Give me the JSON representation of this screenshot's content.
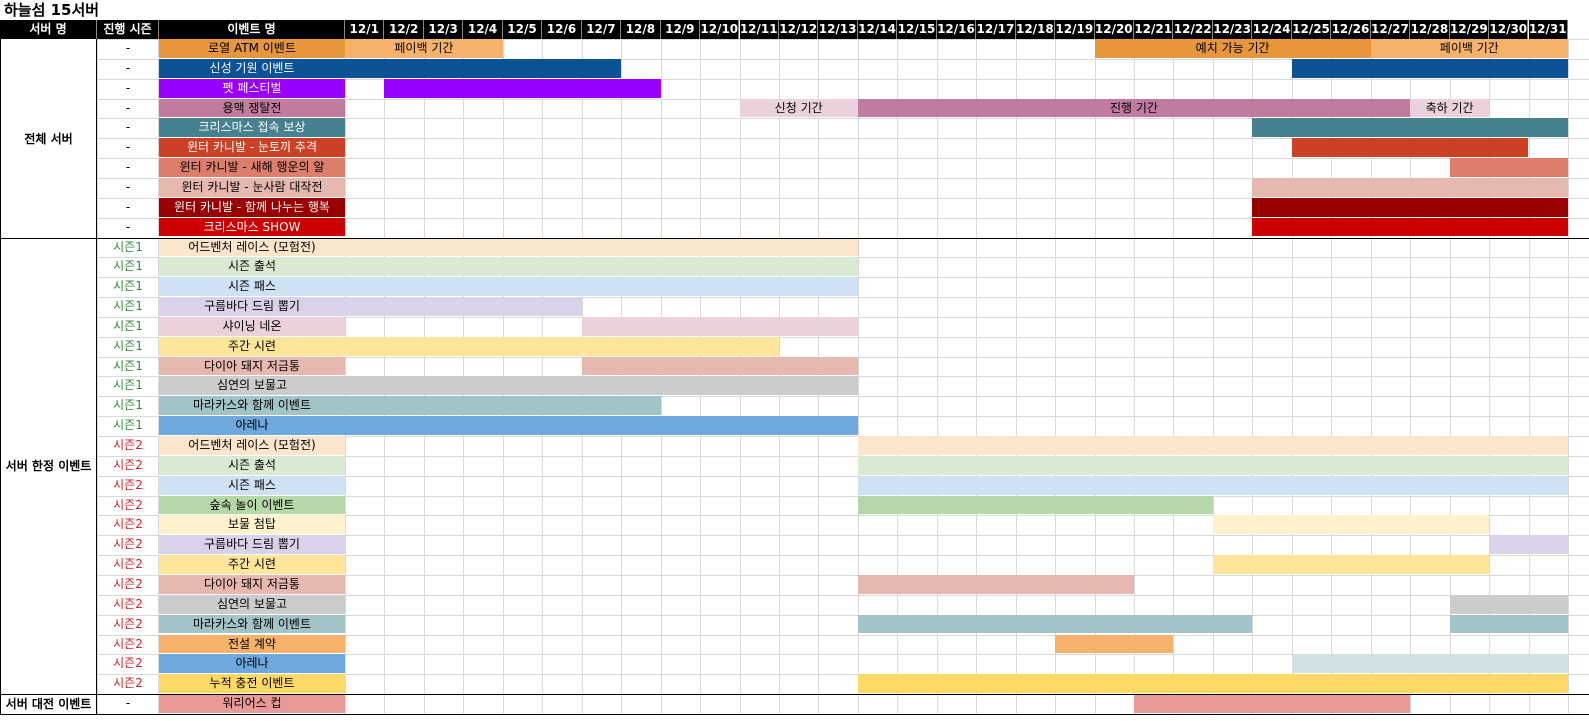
{
  "title": "하늘섬 15서버",
  "headers": {
    "server": "서버 명",
    "season": "진행 시즌",
    "event": "이벤트 명"
  },
  "dates": [
    "12/1",
    "12/2",
    "12/3",
    "12/4",
    "12/5",
    "12/6",
    "12/7",
    "12/8",
    "12/9",
    "12/10",
    "12/11",
    "12/12",
    "12/13",
    "12/14",
    "12/15",
    "12/16",
    "12/17",
    "12/18",
    "12/19",
    "12/20",
    "12/21",
    "12/22",
    "12/23",
    "12/24",
    "12/25",
    "12/26",
    "12/27",
    "12/28",
    "12/29",
    "12/30",
    "12/31"
  ],
  "groups": [
    {
      "label": "전체 서버",
      "start": 0,
      "count": 10
    },
    {
      "label": "서버 한정 이벤트",
      "start": 10,
      "count": 23
    },
    {
      "label": "서버 대전 이벤트",
      "start": 33,
      "count": 1
    }
  ],
  "season_colors": {
    "-": "#000000",
    "시즌1": "#2e8b3a",
    "시즌2": "#d42020"
  },
  "rows": [
    {
      "season": "-",
      "name": "로열 ATM 이벤트",
      "color": "#e8963c",
      "text": "#000000",
      "bars": [
        {
          "start": 1,
          "end": 4,
          "color": "#f6b26b",
          "label": "페이백 기간"
        },
        {
          "start": 20,
          "end": 26,
          "color": "#e8963c",
          "label": "예치 가능 기간"
        },
        {
          "start": 27,
          "end": 31,
          "color": "#f6b26b",
          "label": "페이백 기간"
        }
      ]
    },
    {
      "season": "-",
      "name": "신성 기원 이벤트",
      "color": "#0b5394",
      "text": "#ffffff",
      "bars": [
        {
          "start": 1,
          "end": 7,
          "color": "#0b5394",
          "label": ""
        },
        {
          "start": 25,
          "end": 31,
          "color": "#0b5394",
          "label": ""
        }
      ]
    },
    {
      "season": "-",
      "name": "펫 페스티벌",
      "color": "#9900ff",
      "text": "#ffffff",
      "bars": [
        {
          "start": 2,
          "end": 8,
          "color": "#9900ff",
          "label": ""
        }
      ]
    },
    {
      "season": "-",
      "name": "용맥 쟁탈전",
      "color": "#c27ba0",
      "text": "#000000",
      "bars": [
        {
          "start": 11,
          "end": 13,
          "color": "#ead1dc",
          "label": "신청 기간"
        },
        {
          "start": 14,
          "end": 27,
          "color": "#c27ba0",
          "label": "진행 기간"
        },
        {
          "start": 28,
          "end": 29,
          "color": "#ead1dc",
          "label": "축하 기간"
        }
      ]
    },
    {
      "season": "-",
      "name": "크리스마스 접속 보상",
      "color": "#45818e",
      "text": "#ffffff",
      "bars": [
        {
          "start": 24,
          "end": 31,
          "color": "#45818e",
          "label": ""
        }
      ]
    },
    {
      "season": "-",
      "name": "윈터 카니발 - 눈토끼 추격",
      "color": "#cc4125",
      "text": "#ffffff",
      "bars": [
        {
          "start": 25,
          "end": 30,
          "color": "#cc4125",
          "label": ""
        }
      ]
    },
    {
      "season": "-",
      "name": "윈터 카니발 - 새해 행운의 알",
      "color": "#dd7e6b",
      "text": "#000000",
      "bars": [
        {
          "start": 29,
          "end": 31,
          "color": "#dd7e6b",
          "label": ""
        }
      ]
    },
    {
      "season": "-",
      "name": "윈터 카니발 - 눈사람 대작전",
      "color": "#e6b8af",
      "text": "#000000",
      "bars": [
        {
          "start": 24,
          "end": 31,
          "color": "#e6b8af",
          "label": ""
        }
      ]
    },
    {
      "season": "-",
      "name": "윈터 카니발 - 함께 나누는 행복",
      "color": "#990000",
      "text": "#ffffff",
      "bars": [
        {
          "start": 24,
          "end": 31,
          "color": "#990000",
          "label": ""
        }
      ]
    },
    {
      "season": "-",
      "name": "크리스마스 SHOW",
      "color": "#cc0000",
      "text": "#ffffff",
      "bars": [
        {
          "start": 24,
          "end": 31,
          "color": "#cc0000",
          "label": ""
        }
      ]
    },
    {
      "season": "시즌1",
      "name": "어드벤처 레이스 (모험전)",
      "color": "#fce5cd",
      "text": "#000000",
      "bars": [
        {
          "start": 1,
          "end": 13,
          "color": "#fce5cd",
          "label": ""
        }
      ]
    },
    {
      "season": "시즌1",
      "name": "시즌 출석",
      "color": "#d9ead3",
      "text": "#000000",
      "bars": [
        {
          "start": 1,
          "end": 13,
          "color": "#d9ead3",
          "label": ""
        }
      ]
    },
    {
      "season": "시즌1",
      "name": "시즌 패스",
      "color": "#cfe2f3",
      "text": "#000000",
      "bars": [
        {
          "start": 1,
          "end": 13,
          "color": "#cfe2f3",
          "label": ""
        }
      ]
    },
    {
      "season": "시즌1",
      "name": "구름바다 드림 뽑기",
      "color": "#d9d2e9",
      "text": "#000000",
      "bars": [
        {
          "start": 1,
          "end": 6,
          "color": "#d9d2e9",
          "label": ""
        }
      ]
    },
    {
      "season": "시즌1",
      "name": "샤이닝 네온",
      "color": "#ead1dc",
      "text": "#000000",
      "bars": [
        {
          "start": 7,
          "end": 13,
          "color": "#ead1dc",
          "label": ""
        }
      ]
    },
    {
      "season": "시즌1",
      "name": "주간 시련",
      "color": "#ffe599",
      "text": "#000000",
      "bars": [
        {
          "start": 1,
          "end": 11,
          "color": "#ffe599",
          "label": ""
        }
      ]
    },
    {
      "season": "시즌1",
      "name": "다이아 돼지 저금통",
      "color": "#e6b8af",
      "text": "#000000",
      "bars": [
        {
          "start": 7,
          "end": 13,
          "color": "#e6b8af",
          "label": ""
        }
      ]
    },
    {
      "season": "시즌1",
      "name": "심연의 보물고",
      "color": "#cccccc",
      "text": "#000000",
      "bars": [
        {
          "start": 1,
          "end": 13,
          "color": "#cccccc",
          "label": ""
        }
      ]
    },
    {
      "season": "시즌1",
      "name": "마라카스와 함께 이벤트",
      "color": "#a2c4c9",
      "text": "#000000",
      "bars": [
        {
          "start": 1,
          "end": 8,
          "color": "#a2c4c9",
          "label": ""
        }
      ]
    },
    {
      "season": "시즌1",
      "name": "아레나",
      "color": "#6fa8dc",
      "text": "#000000",
      "bars": [
        {
          "start": 1,
          "end": 13,
          "color": "#6fa8dc",
          "label": ""
        }
      ]
    },
    {
      "season": "시즌2",
      "name": "어드벤처 레이스 (모험전)",
      "color": "#fce5cd",
      "text": "#000000",
      "bars": [
        {
          "start": 14,
          "end": 31,
          "color": "#fce5cd",
          "label": ""
        }
      ]
    },
    {
      "season": "시즌2",
      "name": "시즌 출석",
      "color": "#d9ead3",
      "text": "#000000",
      "bars": [
        {
          "start": 14,
          "end": 31,
          "color": "#d9ead3",
          "label": ""
        }
      ]
    },
    {
      "season": "시즌2",
      "name": "시즌 패스",
      "color": "#cfe2f3",
      "text": "#000000",
      "bars": [
        {
          "start": 14,
          "end": 31,
          "color": "#cfe2f3",
          "label": ""
        }
      ]
    },
    {
      "season": "시즌2",
      "name": "숲속 놀이 이벤트",
      "color": "#b6d7a8",
      "text": "#000000",
      "bars": [
        {
          "start": 14,
          "end": 22,
          "color": "#b6d7a8",
          "label": ""
        }
      ]
    },
    {
      "season": "시즌2",
      "name": "보물 첨탑",
      "color": "#fff2cc",
      "text": "#000000",
      "bars": [
        {
          "start": 23,
          "end": 29,
          "color": "#fff2cc",
          "label": ""
        }
      ]
    },
    {
      "season": "시즌2",
      "name": "구름바다 드림 뽑기",
      "color": "#d9d2e9",
      "text": "#000000",
      "bars": [
        {
          "start": 30,
          "end": 31,
          "color": "#d9d2e9",
          "label": ""
        }
      ]
    },
    {
      "season": "시즌2",
      "name": "주간 시련",
      "color": "#ffe599",
      "text": "#000000",
      "bars": [
        {
          "start": 23,
          "end": 29,
          "color": "#ffe599",
          "label": ""
        }
      ]
    },
    {
      "season": "시즌2",
      "name": "다이아 돼지 저금통",
      "color": "#e6b8af",
      "text": "#000000",
      "bars": [
        {
          "start": 14,
          "end": 20,
          "color": "#e6b8af",
          "label": ""
        }
      ]
    },
    {
      "season": "시즌2",
      "name": "심연의 보물고",
      "color": "#cccccc",
      "text": "#000000",
      "bars": [
        {
          "start": 29,
          "end": 31,
          "color": "#cccccc",
          "label": ""
        }
      ]
    },
    {
      "season": "시즌2",
      "name": "마라카스와 함께 이벤트",
      "color": "#a2c4c9",
      "text": "#000000",
      "bars": [
        {
          "start": 14,
          "end": 23,
          "color": "#a2c4c9",
          "label": ""
        },
        {
          "start": 29,
          "end": 31,
          "color": "#a2c4c9",
          "label": ""
        }
      ]
    },
    {
      "season": "시즌2",
      "name": "전설 계약",
      "color": "#f6b26b",
      "text": "#000000",
      "bars": [
        {
          "start": 19,
          "end": 21,
          "color": "#f6b26b",
          "label": ""
        }
      ]
    },
    {
      "season": "시즌2",
      "name": "아레나",
      "color": "#6fa8dc",
      "text": "#000000",
      "bars": [
        {
          "start": 25,
          "end": 31,
          "color": "#d0e0e3",
          "label": ""
        }
      ]
    },
    {
      "season": "시즌2",
      "name": "누적 충전 이벤트",
      "color": "#ffd966",
      "text": "#000000",
      "bars": [
        {
          "start": 14,
          "end": 31,
          "color": "#ffd966",
          "label": ""
        }
      ]
    },
    {
      "season": "-",
      "name": "워리어스 컵",
      "color": "#ea9999",
      "text": "#000000",
      "bars": [
        {
          "start": 21,
          "end": 27,
          "color": "#ea9999",
          "label": ""
        }
      ]
    }
  ]
}
